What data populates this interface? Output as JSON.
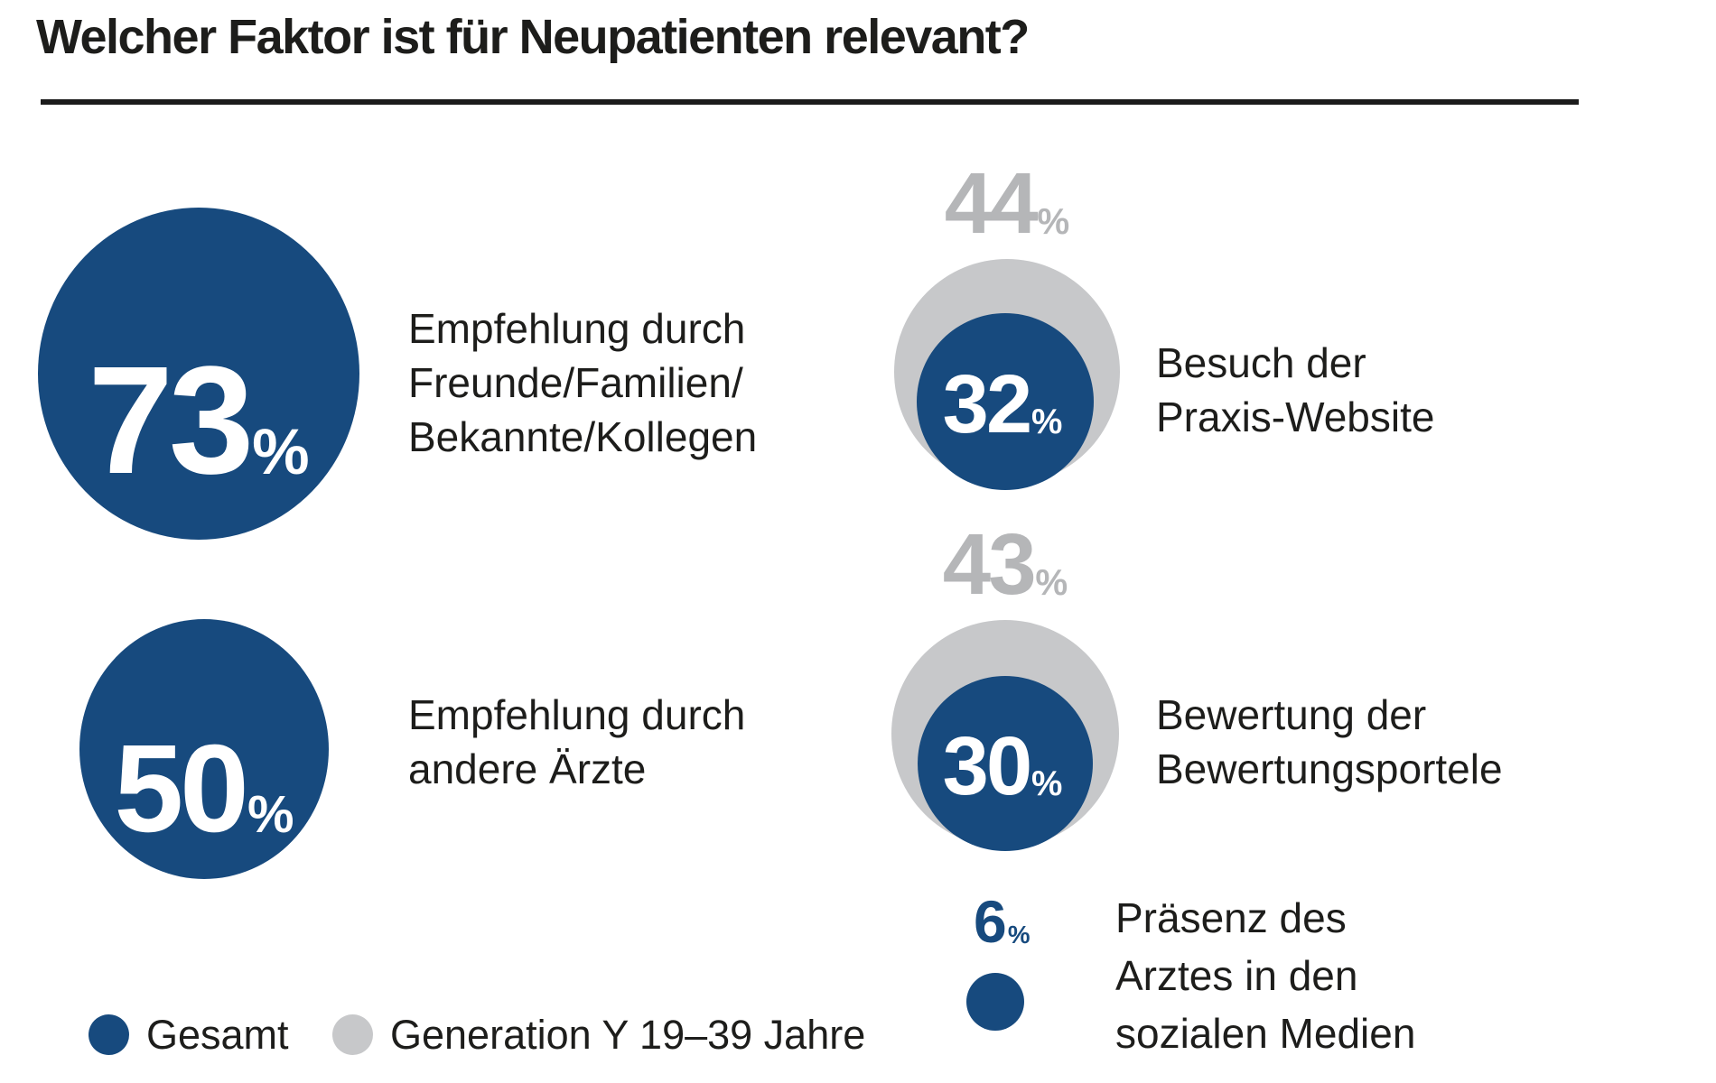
{
  "title": "Welcher Faktor ist für Neupatienten relevant?",
  "percent_sign": "%",
  "colors": {
    "blue": "#174A7E",
    "gray_circle": "#C7C8CA",
    "gray_value": "#B5B6B8",
    "text": "#1D1D1B"
  },
  "chart_data": {
    "type": "bubble",
    "title": "Welcher Faktor ist für Neupatienten relevant?",
    "unit": "%",
    "series_names": [
      "Gesamt",
      "Generation Y 19–39 Jahre"
    ],
    "series_colors": [
      "#174A7E",
      "#C7C8CA"
    ],
    "legend_position": "bottom-left",
    "items": [
      {
        "label": "Empfehlung durch Freunde/Familien/Bekannte/Kollegen",
        "label_lines": [
          "Empfehlung durch",
          "Freunde/Familien/",
          "Bekannte/Kollegen"
        ],
        "gesamt": 73,
        "generation_y": null
      },
      {
        "label": "Empfehlung durch andere Ärzte",
        "label_lines": [
          "Empfehlung durch",
          "andere Ärzte"
        ],
        "gesamt": 50,
        "generation_y": null
      },
      {
        "label": "Besuch der Praxis-Website",
        "label_lines": [
          "Besuch der",
          "Praxis-Website"
        ],
        "gesamt": 32,
        "generation_y": 44
      },
      {
        "label": "Bewertung der Bewertungsportele",
        "label_lines": [
          "Bewertung der",
          "Bewertungsportele"
        ],
        "gesamt": 30,
        "generation_y": 43
      },
      {
        "label": "Präsenz des Arztes in den sozialen Medien",
        "label_lines": [
          "Präsenz des",
          "Arztes in den",
          "sozialen Medien"
        ],
        "gesamt": 6,
        "generation_y": null
      }
    ]
  }
}
